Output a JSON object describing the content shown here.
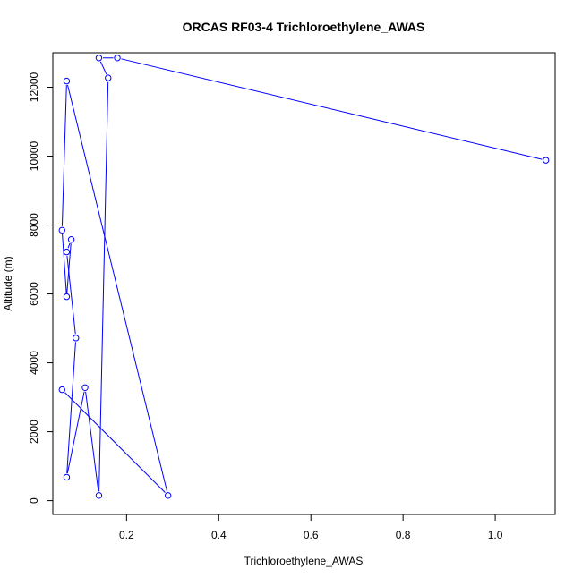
{
  "chart_data": {
    "type": "line",
    "title": "ORCAS RF03-4 Trichloroethylene_AWAS",
    "xlabel": "Trichloroethylene_AWAS",
    "ylabel": "Altitude (m)",
    "xlim": [
      0.04,
      1.13
    ],
    "ylim": [
      -400,
      13000
    ],
    "x_ticks": [
      0.2,
      0.4,
      0.6,
      0.8,
      1.0
    ],
    "x_tick_labels": [
      "0.2",
      "0.4",
      "0.6",
      "0.8",
      "1.0"
    ],
    "y_ticks": [
      0,
      2000,
      4000,
      6000,
      8000,
      10000,
      12000
    ],
    "y_tick_labels": [
      "0",
      "2000",
      "4000",
      "6000",
      "8000",
      "10000",
      "12000"
    ],
    "grid": false,
    "series": [
      {
        "color": "#0000ff",
        "marker": "open-circle",
        "points": [
          {
            "x": 1.11,
            "y": 9880
          },
          {
            "x": 0.18,
            "y": 12850
          },
          {
            "x": 0.14,
            "y": 12850
          },
          {
            "x": 0.16,
            "y": 12270
          },
          {
            "x": 0.14,
            "y": 150
          },
          {
            "x": 0.11,
            "y": 3280
          },
          {
            "x": 0.07,
            "y": 680
          },
          {
            "x": 0.09,
            "y": 4720
          },
          {
            "x": 0.07,
            "y": 7220
          },
          {
            "x": 0.08,
            "y": 7580
          },
          {
            "x": 0.07,
            "y": 5920
          },
          {
            "x": 0.06,
            "y": 7850
          },
          {
            "x": 0.07,
            "y": 12180
          },
          {
            "x": 0.29,
            "y": 150
          },
          {
            "x": 0.06,
            "y": 3220
          }
        ]
      }
    ]
  }
}
